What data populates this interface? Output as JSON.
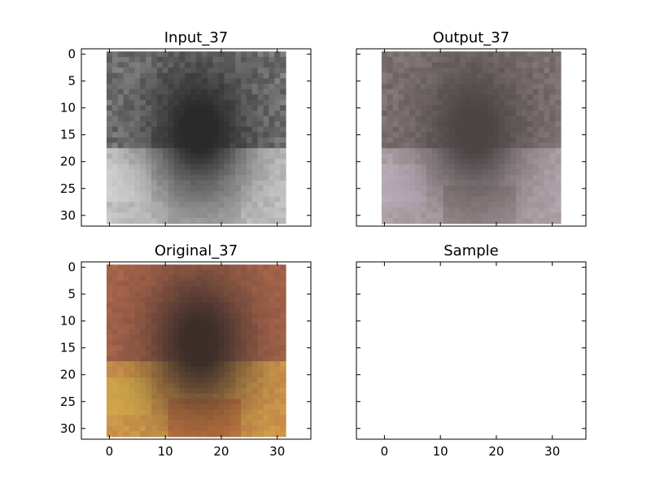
{
  "chart_data": [
    {
      "type": "image",
      "title": "Input_37",
      "xlim": [
        -5,
        36
      ],
      "ylim": [
        32,
        -1
      ],
      "x_ticks": [
        0,
        10,
        20,
        30
      ],
      "y_ticks": [
        0,
        5,
        10,
        15,
        20,
        25,
        30
      ],
      "show_xtick_labels": false,
      "show_ytick_labels": true,
      "image_extent": [
        -0.5,
        31.5,
        31.5,
        -0.5
      ],
      "colormap": "grayscale",
      "palette": [
        "#5a5a5a",
        "#8a8a8a",
        "#b5b5b5",
        "#2a2a2a",
        "#dcdcdc",
        "#9e9e9e"
      ]
    },
    {
      "type": "image",
      "title": "Output_37",
      "xlim": [
        -5,
        36
      ],
      "ylim": [
        32,
        -1
      ],
      "x_ticks": [
        0,
        10,
        20,
        30
      ],
      "y_ticks": [
        0,
        5,
        10,
        15,
        20,
        25,
        30
      ],
      "show_xtick_labels": false,
      "show_ytick_labels": false,
      "image_extent": [
        -0.5,
        31.5,
        31.5,
        -0.5
      ],
      "colormap": "muted-color",
      "palette": [
        "#6e6464",
        "#8a7e7c",
        "#a89a9c",
        "#4b4545",
        "#c0b4c4",
        "#7c6f6b"
      ]
    },
    {
      "type": "image",
      "title": "Original_37",
      "xlim": [
        -5,
        36
      ],
      "ylim": [
        32,
        -1
      ],
      "x_ticks": [
        0,
        10,
        20,
        30
      ],
      "y_ticks": [
        0,
        5,
        10,
        15,
        20,
        25,
        30
      ],
      "show_xtick_labels": true,
      "show_ytick_labels": true,
      "image_extent": [
        -0.5,
        31.5,
        31.5,
        -0.5
      ],
      "colormap": "color",
      "palette": [
        "#9b5e4a",
        "#b06a4c",
        "#c98a4a",
        "#3d2e2a",
        "#d9b24a",
        "#b0472f"
      ]
    },
    {
      "type": "empty",
      "title": "Sample",
      "xlim": [
        -5,
        36
      ],
      "ylim": [
        32,
        -1
      ],
      "x_ticks": [
        0,
        10,
        20,
        30
      ],
      "y_ticks": [
        0,
        5,
        10,
        15,
        20,
        25,
        30
      ],
      "show_xtick_labels": true,
      "show_ytick_labels": false
    }
  ]
}
